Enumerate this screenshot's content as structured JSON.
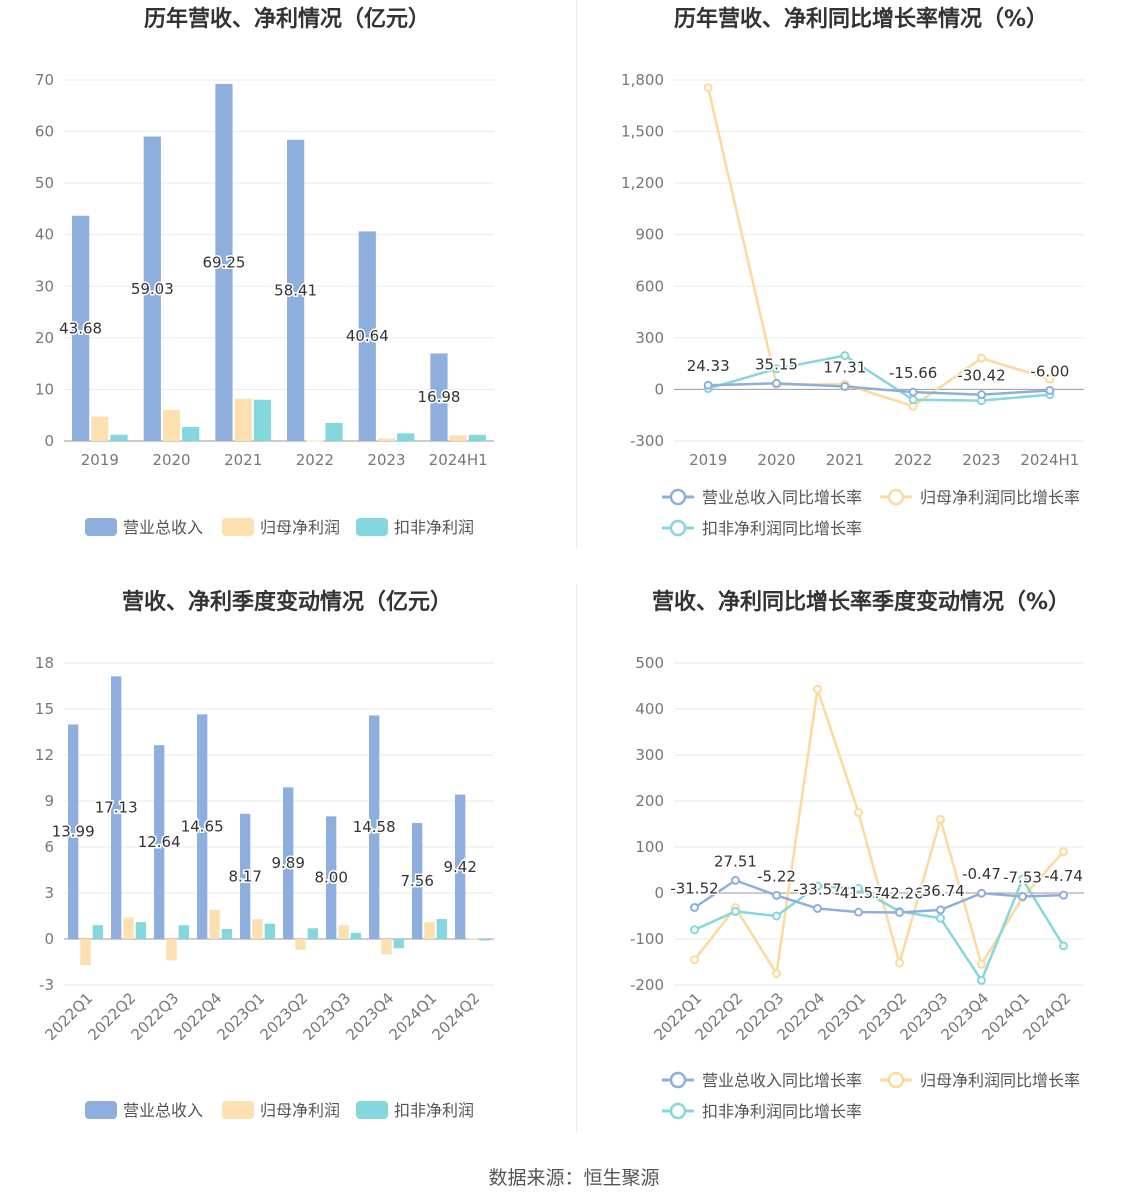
{
  "source": "数据来源：恒生聚源",
  "colors": {
    "revenue": "#8eaedd",
    "net_profit": "#fde0b0",
    "deducted_profit": "#84d7dc",
    "revenue_line": "#8eaedd",
    "net_profit_line": "#fdd99a",
    "deducted_line": "#84d7dc",
    "grid": "#e8eaf0",
    "axis": "#999999"
  },
  "chart_data": [
    {
      "id": "p1",
      "type": "bar",
      "title": "历年营收、净利情况（亿元）",
      "categories": [
        "2019",
        "2020",
        "2021",
        "2022",
        "2023",
        "2024H1"
      ],
      "ylim": [
        0,
        70
      ],
      "yticks": [
        0,
        10,
        20,
        30,
        40,
        50,
        60,
        70
      ],
      "ytick_labels": [
        "0",
        "10",
        "20",
        "30",
        "40",
        "50",
        "60",
        "70"
      ],
      "series": [
        {
          "name": "营业总收入",
          "color_key": "revenue",
          "values": [
            43.68,
            59.03,
            69.25,
            58.41,
            40.64,
            16.98
          ]
        },
        {
          "name": "归母净利润",
          "color_key": "net_profit",
          "values": [
            4.7,
            6.0,
            8.2,
            0.1,
            0.5,
            1.1
          ]
        },
        {
          "name": "扣非净利润",
          "color_key": "deducted_profit",
          "values": [
            1.2,
            2.7,
            8.0,
            3.5,
            1.5,
            1.2
          ]
        }
      ],
      "data_labels": [
        "43.68",
        "59.03",
        "69.25",
        "58.41",
        "40.64",
        "16.98"
      ],
      "legend": [
        "营业总收入",
        "归母净利润",
        "扣非净利润"
      ]
    },
    {
      "id": "p2",
      "type": "line",
      "title": "历年营收、净利同比增长率情况（%）",
      "categories": [
        "2019",
        "2020",
        "2021",
        "2022",
        "2023",
        "2024H1"
      ],
      "ylim": [
        -300,
        1800
      ],
      "yticks": [
        -300,
        0,
        300,
        600,
        900,
        1200,
        1500,
        1800
      ],
      "ytick_labels": [
        "-300",
        "0",
        "300",
        "600",
        "900",
        "1,200",
        "1,500",
        "1,800"
      ],
      "series": [
        {
          "name": "营业总收入同比增长率",
          "color_key": "revenue_line",
          "values": [
            24.33,
            35.15,
            17.31,
            -15.66,
            -30.42,
            -6.0
          ]
        },
        {
          "name": "归母净利润同比增长率",
          "color_key": "net_profit_line",
          "values": [
            1755,
            28,
            30,
            -98,
            182,
            60
          ]
        },
        {
          "name": "扣非净利润同比增长率",
          "color_key": "deducted_line",
          "values": [
            5,
            120,
            197,
            -60,
            -65,
            -30
          ]
        }
      ],
      "data_labels": [
        "24.33",
        "35.15",
        "17.31",
        "-15.66",
        "-30.42",
        "-6.00"
      ],
      "legend": [
        "营业总收入同比增长率",
        "归母净利润同比增长率",
        "扣非净利润同比增长率"
      ]
    },
    {
      "id": "p3",
      "type": "bar",
      "title": "营收、净利季度变动情况（亿元）",
      "categories": [
        "2022Q1",
        "2022Q2",
        "2022Q3",
        "2022Q4",
        "2023Q1",
        "2023Q2",
        "2023Q3",
        "2023Q4",
        "2024Q1",
        "2024Q2"
      ],
      "ylim": [
        -3,
        18
      ],
      "yticks": [
        -3,
        0,
        3,
        6,
        9,
        12,
        15,
        18
      ],
      "ytick_labels": [
        "-3",
        "0",
        "3",
        "6",
        "9",
        "12",
        "15",
        "18"
      ],
      "series": [
        {
          "name": "营业总收入",
          "color_key": "revenue",
          "values": [
            13.99,
            17.13,
            12.64,
            14.65,
            8.17,
            9.89,
            8.0,
            14.58,
            7.56,
            9.42
          ]
        },
        {
          "name": "归母净利润",
          "color_key": "net_profit",
          "values": [
            -1.7,
            1.4,
            -1.4,
            1.9,
            1.3,
            -0.7,
            0.9,
            -1.0,
            1.1,
            0.05
          ]
        },
        {
          "name": "扣非净利润",
          "color_key": "deducted_profit",
          "values": [
            0.9,
            1.1,
            0.9,
            0.65,
            1.0,
            0.7,
            0.4,
            -0.6,
            1.3,
            -0.1
          ]
        }
      ],
      "data_labels": [
        "13.99",
        "17.13",
        "12.64",
        "14.65",
        "8.17",
        "9.89",
        "8.00",
        "14.58",
        "7.56",
        "9.42"
      ],
      "legend": [
        "营业总收入",
        "归母净利润",
        "扣非净利润"
      ]
    },
    {
      "id": "p4",
      "type": "line",
      "title": "营收、净利同比增长率季度变动情况（%）",
      "categories": [
        "2022Q1",
        "2022Q2",
        "2022Q3",
        "2022Q4",
        "2023Q1",
        "2023Q2",
        "2023Q3",
        "2023Q4",
        "2024Q1",
        "2024Q2"
      ],
      "ylim": [
        -200,
        500
      ],
      "yticks": [
        -200,
        -100,
        0,
        100,
        200,
        300,
        400,
        500
      ],
      "ytick_labels": [
        "-200",
        "-100",
        "0",
        "100",
        "200",
        "300",
        "400",
        "500"
      ],
      "series": [
        {
          "name": "营业总收入同比增长率",
          "color_key": "revenue_line",
          "values": [
            -31.52,
            27.51,
            -5.22,
            -33.57,
            -41.57,
            -42.26,
            -36.74,
            -0.47,
            -7.53,
            -4.74
          ]
        },
        {
          "name": "归母净利润同比增长率",
          "color_key": "net_profit_line",
          "values": [
            -145,
            -32,
            -175,
            443,
            175,
            -152,
            160,
            -155,
            -10,
            90
          ]
        },
        {
          "name": "扣非净利润同比增长率",
          "color_key": "deducted_line",
          "values": [
            -80,
            -40,
            -50,
            15,
            10,
            -40,
            -55,
            -190,
            30,
            -115
          ]
        }
      ],
      "data_labels": [
        "-31.52",
        "27.51",
        "-5.22",
        "-33.57",
        "-41.57",
        "-42.26",
        "-36.74",
        "-0.47",
        "-7.53",
        "-4.74"
      ],
      "legend": [
        "营业总收入同比增长率",
        "归母净利润同比增长率",
        "扣非净利润同比增长率"
      ]
    }
  ]
}
